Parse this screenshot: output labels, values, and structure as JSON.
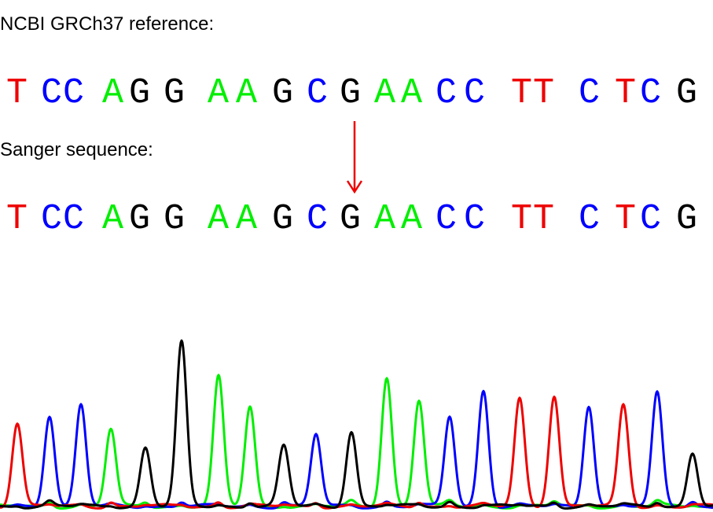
{
  "colors": {
    "A": "#00ee00",
    "C": "#0000ff",
    "G": "#000000",
    "T": "#ee0000",
    "arrow": "#ee0000"
  },
  "reference": {
    "label": "NCBI GRCh37 reference:",
    "bases": [
      "T",
      "C",
      "C",
      "A",
      "G",
      "G",
      "A",
      "A",
      "G",
      "C",
      "G",
      "A",
      "A",
      "C",
      "C",
      "T",
      "T",
      "C",
      "T",
      "C",
      "G"
    ]
  },
  "sanger": {
    "label": "Sanger sequence:",
    "bases": [
      "T",
      "C",
      "C",
      "A",
      "G",
      "G",
      "A",
      "A",
      "G",
      "C",
      "G",
      "A",
      "A",
      "C",
      "C",
      "T",
      "T",
      "C",
      "T",
      "C",
      "G"
    ]
  },
  "variant_position_index": 10,
  "chromatogram": {
    "peaks": [
      {
        "base": "T",
        "height": 0.51
      },
      {
        "base": "C",
        "height": 0.56
      },
      {
        "base": "C",
        "height": 0.62
      },
      {
        "base": "A",
        "height": 0.47
      },
      {
        "base": "G",
        "height": 0.36
      },
      {
        "base": "G",
        "height": 1.0
      },
      {
        "base": "A",
        "height": 0.79
      },
      {
        "base": "A",
        "height": 0.61
      },
      {
        "base": "G",
        "height": 0.37
      },
      {
        "base": "C",
        "height": 0.44
      },
      {
        "base": "G",
        "height": 0.46
      },
      {
        "base": "A",
        "height": 0.79
      },
      {
        "base": "A",
        "height": 0.65
      },
      {
        "base": "C",
        "height": 0.55
      },
      {
        "base": "C",
        "height": 0.71
      },
      {
        "base": "T",
        "height": 0.66
      },
      {
        "base": "T",
        "height": 0.68
      },
      {
        "base": "C",
        "height": 0.62
      },
      {
        "base": "T",
        "height": 0.62
      },
      {
        "base": "C",
        "height": 0.69
      },
      {
        "base": "G",
        "height": 0.33
      }
    ]
  }
}
